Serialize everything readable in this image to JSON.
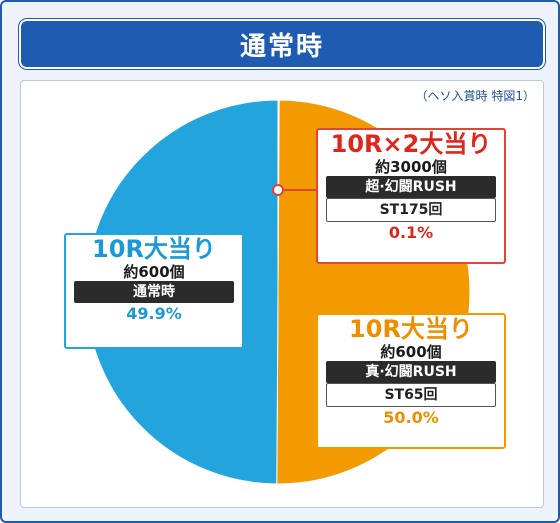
{
  "title": "通常時",
  "note": "（ヘソ入賞時 特図1）",
  "colors": {
    "blue": "#24a4dc",
    "orange": "#f29a00",
    "red": "#e0453d",
    "frame": "#1d5cb0"
  },
  "chart_data": {
    "type": "pie",
    "slices": [
      {
        "label": "10R大当り",
        "value": 49.9,
        "color": "#24a4dc"
      },
      {
        "label": "10R大当り",
        "value": 50.0,
        "color": "#f29a00"
      },
      {
        "label": "10R×2大当り",
        "value": 0.1,
        "color": "#e0453d"
      }
    ]
  },
  "boxes": {
    "blue": {
      "title": "10R大当り",
      "sub": "約600個",
      "mode": "通常時",
      "pct": "49.9%"
    },
    "red": {
      "title": "10R×2大当り",
      "sub": "約3000個",
      "mode": "超·幻闘RUSH",
      "st": "ST175回",
      "pct": "0.1%"
    },
    "orange": {
      "title": "10R大当り",
      "sub": "約600個",
      "mode": "真·幻闘RUSH",
      "st": "ST65回",
      "pct": "50.0%"
    }
  }
}
